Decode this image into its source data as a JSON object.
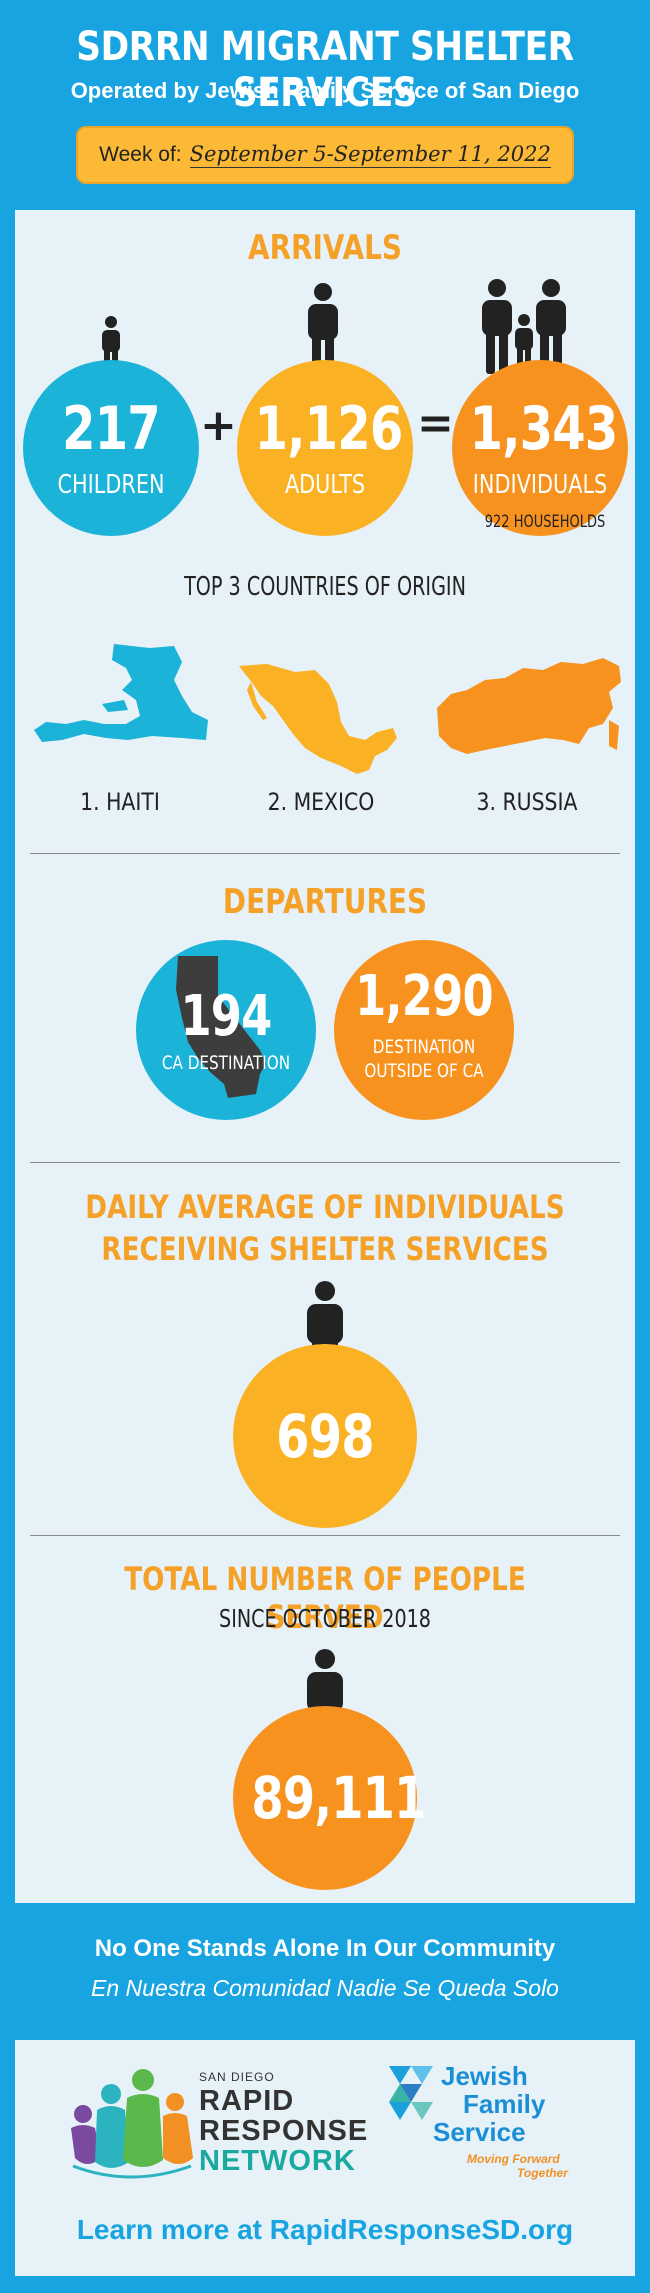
{
  "header": {
    "title": "SDRRN MIGRANT SHELTER SERVICES",
    "subtitle": "Operated by Jewish Family Service of San Diego",
    "week_label": "Week of:",
    "week_value": "September 5-September 11, 2022"
  },
  "arrivals": {
    "title": "ARRIVALS",
    "children": {
      "value": "217",
      "label": "CHILDREN"
    },
    "plus": "+",
    "adults": {
      "value": "1,126",
      "label": "ADULTS"
    },
    "equals": "=",
    "individuals": {
      "value": "1,343",
      "label": "INDIVIDUALS"
    },
    "households": "922 HOUSEHOLDS"
  },
  "countries": {
    "title": "TOP 3 COUNTRIES OF ORIGIN",
    "items": [
      {
        "label": "1. HAITI"
      },
      {
        "label": "2. MEXICO"
      },
      {
        "label": "3. RUSSIA"
      }
    ]
  },
  "departures": {
    "title": "DEPARTURES",
    "ca": {
      "value": "194",
      "label": "CA DESTINATION"
    },
    "outside": {
      "value": "1,290",
      "label_line1": "DESTINATION",
      "label_line2": "OUTSIDE OF CA"
    }
  },
  "daily_average": {
    "title_line1": "DAILY AVERAGE OF INDIVIDUALS",
    "title_line2": "RECEIVING SHELTER SERVICES",
    "value": "698"
  },
  "total_served": {
    "title": "TOTAL NUMBER OF PEOPLE SERVED",
    "subtitle": "SINCE OCTOBER 2018",
    "value": "89,111"
  },
  "slogans": {
    "english": "No One Stands Alone In Our Community",
    "spanish": "En Nuestra Comunidad Nadie Se Queda Solo"
  },
  "logos": {
    "rrn_small": "SAN DIEGO",
    "rrn_line1": "RAPID",
    "rrn_line2": "RESPONSE",
    "rrn_line3": "NETWORK",
    "jfs_line1": "Jewish",
    "jfs_line2": "Family",
    "jfs_line3": "Service",
    "jfs_tag1": "Moving Forward",
    "jfs_tag2": "Together"
  },
  "footer": {
    "learn_more": "Learn more at RapidResponseSD.org"
  },
  "colors": {
    "background": "#17a4e0",
    "panel": "#e7f1f8",
    "cyan": "#1bb3d8",
    "amber": "#fbb124",
    "orange": "#f7921e",
    "title_orange": "#f5a128",
    "week_box": "#fbb935"
  },
  "icons": [
    "person-icon",
    "family-icon",
    "haiti-map-icon",
    "mexico-map-icon",
    "russia-map-icon",
    "california-map-icon",
    "rrn-people-logo-icon",
    "jfs-triangle-logo-icon"
  ]
}
